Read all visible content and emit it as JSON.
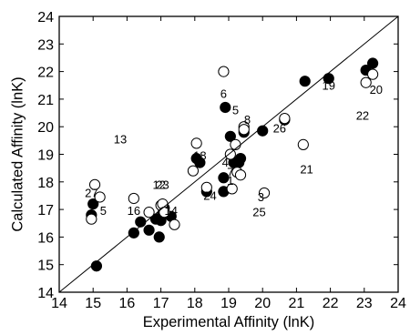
{
  "chart_data": {
    "type": "scatter",
    "title": "",
    "xlabel": "Experimental Affinity (lnK)",
    "ylabel": "Calculated Affinity (lnK)",
    "xlim": [
      14,
      24
    ],
    "ylim": [
      14,
      24
    ],
    "x_ticks": [
      14,
      15,
      16,
      17,
      18,
      19,
      20,
      21,
      22,
      23,
      24
    ],
    "y_ticks": [
      14,
      15,
      16,
      17,
      18,
      19,
      20,
      21,
      22,
      23,
      24
    ],
    "grid": false,
    "legend": "none",
    "reference_line": {
      "x": [
        14,
        24
      ],
      "y": [
        14,
        24
      ]
    },
    "series": [
      {
        "marker": "filled-circle",
        "color": "#000000",
        "points": [
          [
            15.1,
            14.95
          ],
          [
            14.95,
            16.8
          ],
          [
            15.0,
            17.2
          ],
          [
            16.2,
            16.15
          ],
          [
            16.4,
            16.55
          ],
          [
            16.65,
            16.25
          ],
          [
            16.85,
            16.65
          ],
          [
            16.95,
            16.0
          ],
          [
            17.0,
            16.6
          ],
          [
            17.05,
            16.85
          ],
          [
            17.1,
            17.05
          ],
          [
            17.3,
            16.75
          ],
          [
            18.05,
            18.85
          ],
          [
            18.15,
            18.7
          ],
          [
            18.35,
            17.65
          ],
          [
            18.85,
            17.65
          ],
          [
            18.85,
            18.15
          ],
          [
            18.9,
            20.7
          ],
          [
            19.05,
            19.65
          ],
          [
            19.15,
            18.7
          ],
          [
            19.3,
            18.7
          ],
          [
            19.35,
            18.85
          ],
          [
            19.45,
            19.8
          ],
          [
            20.0,
            19.85
          ],
          [
            20.65,
            20.25
          ],
          [
            21.25,
            21.65
          ],
          [
            21.95,
            21.75
          ],
          [
            23.05,
            22.05
          ],
          [
            23.25,
            22.3
          ]
        ]
      },
      {
        "marker": "open-circle",
        "color": "#000000",
        "points": [
          [
            14.95,
            16.65
          ],
          [
            15.05,
            17.9
          ],
          [
            15.2,
            17.45
          ],
          [
            16.2,
            17.4
          ],
          [
            16.65,
            16.9
          ],
          [
            17.0,
            17.15
          ],
          [
            17.05,
            17.2
          ],
          [
            17.1,
            16.9
          ],
          [
            17.4,
            16.45
          ],
          [
            17.95,
            18.4
          ],
          [
            18.05,
            19.4
          ],
          [
            18.35,
            17.8
          ],
          [
            18.85,
            22.0
          ],
          [
            19.05,
            19.0
          ],
          [
            19.1,
            17.75
          ],
          [
            19.2,
            19.35
          ],
          [
            19.25,
            18.35
          ],
          [
            19.35,
            18.25
          ],
          [
            19.45,
            20.0
          ],
          [
            19.45,
            19.9
          ],
          [
            20.05,
            17.6
          ],
          [
            20.65,
            20.3
          ],
          [
            21.2,
            19.35
          ],
          [
            23.05,
            21.6
          ],
          [
            23.25,
            21.9
          ]
        ]
      }
    ],
    "point_labels": [
      {
        "text": "5",
        "x": 15.3,
        "y": 16.8
      },
      {
        "text": "27",
        "x": 14.95,
        "y": 17.45
      },
      {
        "text": "16",
        "x": 16.2,
        "y": 16.8
      },
      {
        "text": "12",
        "x": 16.95,
        "y": 17.75
      },
      {
        "text": "23",
        "x": 17.05,
        "y": 17.75
      },
      {
        "text": "14",
        "x": 17.3,
        "y": 16.8
      },
      {
        "text": "13",
        "x": 15.8,
        "y": 19.4
      },
      {
        "text": "18",
        "x": 18.15,
        "y": 18.8
      },
      {
        "text": "24",
        "x": 18.45,
        "y": 17.35
      },
      {
        "text": "4",
        "x": 18.9,
        "y": 18.55
      },
      {
        "text": "1",
        "x": 19.05,
        "y": 17.9
      },
      {
        "text": "7",
        "x": 19.05,
        "y": 18.2
      },
      {
        "text": "6",
        "x": 18.85,
        "y": 21.05
      },
      {
        "text": "5",
        "x": 19.2,
        "y": 20.45
      },
      {
        "text": "8",
        "x": 19.55,
        "y": 20.1
      },
      {
        "text": "25",
        "x": 19.9,
        "y": 16.75
      },
      {
        "text": "3",
        "x": 19.95,
        "y": 17.3
      },
      {
        "text": "26",
        "x": 20.5,
        "y": 19.8
      },
      {
        "text": "21",
        "x": 21.3,
        "y": 18.3
      },
      {
        "text": "19",
        "x": 21.95,
        "y": 21.35
      },
      {
        "text": "20",
        "x": 23.35,
        "y": 21.2
      },
      {
        "text": "22",
        "x": 22.95,
        "y": 20.25
      }
    ]
  }
}
